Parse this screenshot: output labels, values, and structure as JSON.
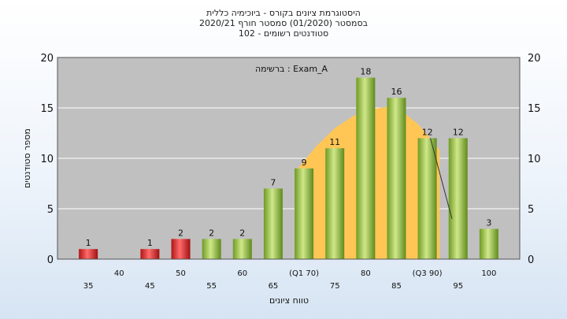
{
  "title_lines": [
    "היסטוגרמת ציונים בקורס - ביוכימיה כללית",
    "בסמסטר  (01/2020)  סמסטר חורף 2020/21",
    "סטודנטים רשומים - 102"
  ],
  "colors": {
    "plot_background": "#c0c0c0",
    "bell_curve": "#ffc656",
    "bar_low": "#d92b2b",
    "bar_high": "#8fb83a",
    "grid": "#ffffff"
  },
  "chart_data": {
    "type": "bar",
    "annotation": "ברשימה : Exam_A",
    "xlabel": "טווח ציונים",
    "ylabel": "מספר סטודנטים",
    "ylim": [
      0,
      20
    ],
    "yticks": [
      0,
      5,
      10,
      15,
      20
    ],
    "xlim": [
      30,
      105
    ],
    "x_tick_labels": [
      {
        "x": 35,
        "label": "35"
      },
      {
        "x": 40,
        "label": "40"
      },
      {
        "x": 45,
        "label": "45"
      },
      {
        "x": 50,
        "label": "50"
      },
      {
        "x": 55,
        "label": "55"
      },
      {
        "x": 60,
        "label": "60"
      },
      {
        "x": 65,
        "label": "65"
      },
      {
        "x": 70,
        "label": "(Q1 70)"
      },
      {
        "x": 75,
        "label": "75"
      },
      {
        "x": 80,
        "label": "80"
      },
      {
        "x": 85,
        "label": "85"
      },
      {
        "x": 90,
        "label": "(Q3 90)"
      },
      {
        "x": 95,
        "label": "95"
      },
      {
        "x": 100,
        "label": "100"
      }
    ],
    "bars": [
      {
        "x": 35,
        "value": 1,
        "group": "low"
      },
      {
        "x": 45,
        "value": 1,
        "group": "low"
      },
      {
        "x": 50,
        "value": 2,
        "group": "low"
      },
      {
        "x": 55,
        "value": 2,
        "group": "high"
      },
      {
        "x": 60,
        "value": 2,
        "group": "high"
      },
      {
        "x": 65,
        "value": 7,
        "group": "high"
      },
      {
        "x": 70,
        "value": 9,
        "group": "high"
      },
      {
        "x": 75,
        "value": 11,
        "group": "high"
      },
      {
        "x": 80,
        "value": 18,
        "group": "high"
      },
      {
        "x": 85,
        "value": 16,
        "group": "high"
      },
      {
        "x": 90,
        "value": 12,
        "group": "high"
      },
      {
        "x": 95,
        "value": 12,
        "group": "high"
      },
      {
        "x": 100,
        "value": 3,
        "group": "high"
      }
    ],
    "bell_curve": {
      "x": [
        69,
        72,
        75,
        78,
        81,
        83.5,
        86,
        88.5,
        91,
        92
      ],
      "y": [
        9,
        11.2,
        13,
        14.2,
        14.9,
        15.1,
        14.6,
        13.4,
        11.6,
        10.8
      ]
    },
    "connector_line": {
      "x": [
        90.5,
        94
      ],
      "y": [
        12,
        4
      ]
    }
  }
}
